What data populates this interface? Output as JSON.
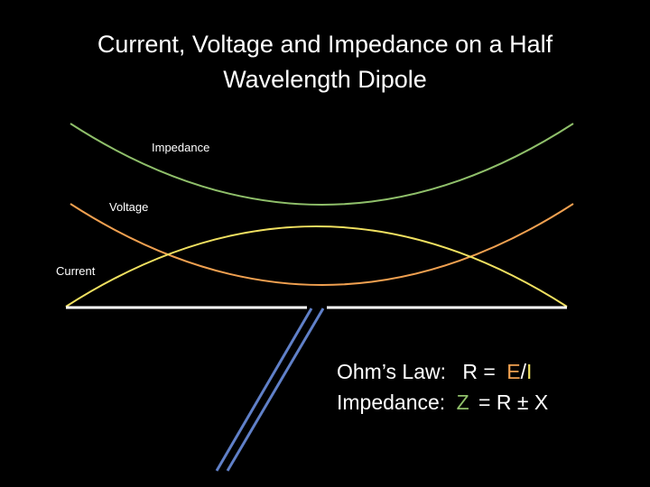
{
  "title": [
    "Current, Voltage and Impedance on a Half",
    "Wavelength Dipole"
  ],
  "curve_labels": {
    "impedance": "Impedance",
    "voltage": "Voltage",
    "current": "Current"
  },
  "formulas": [
    {
      "label": "Ohm’s Law:",
      "parts": [
        "R =",
        "E",
        "/",
        "I"
      ]
    },
    {
      "label": "Impedance:",
      "parts": [
        "Z",
        "= R ± X"
      ]
    }
  ]
}
